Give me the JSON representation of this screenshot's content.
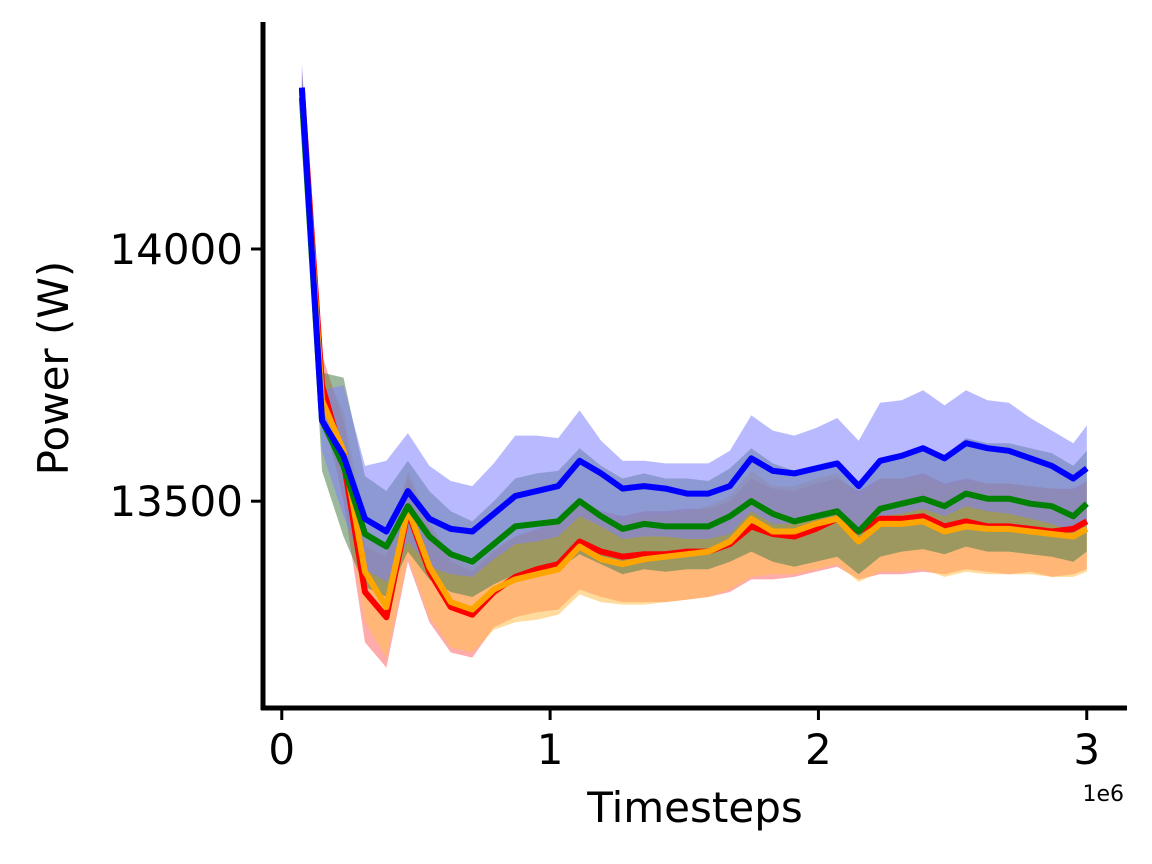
{
  "chart_data": {
    "type": "line",
    "title": "",
    "xlabel": "Timesteps",
    "ylabel": "Power (W)",
    "x_offset_label": "1e6",
    "xlim": [
      -70000,
      3150000
    ],
    "ylim": [
      13090,
      14450
    ],
    "xticks": [
      0,
      1000000,
      2000000,
      3000000
    ],
    "xtick_labels": [
      "0",
      "1",
      "2",
      "3"
    ],
    "yticks": [
      13500,
      14000
    ],
    "ytick_labels": [
      "13500",
      "14000"
    ],
    "grid": false,
    "legend": "none",
    "x": [
      75000,
      150000,
      230000,
      310000,
      390000,
      470000,
      550000,
      630000,
      710000,
      790000,
      870000,
      950000,
      1030000,
      1110000,
      1190000,
      1270000,
      1350000,
      1430000,
      1510000,
      1590000,
      1670000,
      1750000,
      1830000,
      1910000,
      1990000,
      2070000,
      2150000,
      2230000,
      2310000,
      2390000,
      2470000,
      2550000,
      2630000,
      2710000,
      2790000,
      2870000,
      2950000,
      3000000
    ],
    "series": [
      {
        "color": "#ff0000",
        "band_color": "#ff6666",
        "values": [
          14315,
          13730,
          13580,
          13320,
          13270,
          13480,
          13360,
          13290,
          13275,
          13320,
          13350,
          13365,
          13375,
          13420,
          13400,
          13390,
          13395,
          13395,
          13400,
          13400,
          13415,
          13450,
          13435,
          13430,
          13445,
          13465,
          13440,
          13465,
          13465,
          13470,
          13450,
          13460,
          13450,
          13450,
          13445,
          13440,
          13445,
          13460
        ],
        "lower": [
          14270,
          13690,
          13500,
          13220,
          13170,
          13380,
          13260,
          13200,
          13190,
          13250,
          13270,
          13280,
          13285,
          13325,
          13310,
          13300,
          13300,
          13300,
          13305,
          13310,
          13320,
          13345,
          13345,
          13350,
          13360,
          13370,
          13345,
          13355,
          13355,
          13360,
          13355,
          13365,
          13360,
          13355,
          13360,
          13350,
          13355,
          13365
        ],
        "upper": [
          14360,
          13790,
          13660,
          13410,
          13390,
          13550,
          13450,
          13380,
          13360,
          13400,
          13430,
          13445,
          13460,
          13505,
          13480,
          13470,
          13480,
          13480,
          13485,
          13485,
          13500,
          13545,
          13525,
          13520,
          13535,
          13545,
          13520,
          13545,
          13545,
          13555,
          13535,
          13545,
          13535,
          13535,
          13530,
          13525,
          13525,
          13540
        ]
      },
      {
        "color": "#ffa500",
        "band_color": "#ffc04d",
        "values": [
          14300,
          13700,
          13600,
          13360,
          13290,
          13485,
          13370,
          13300,
          13285,
          13325,
          13345,
          13355,
          13365,
          13410,
          13385,
          13375,
          13385,
          13390,
          13395,
          13400,
          13420,
          13465,
          13440,
          13440,
          13455,
          13465,
          13420,
          13455,
          13455,
          13460,
          13440,
          13450,
          13445,
          13445,
          13440,
          13435,
          13430,
          13445
        ],
        "lower": [
          14260,
          13660,
          13520,
          13260,
          13190,
          13390,
          13270,
          13210,
          13200,
          13245,
          13260,
          13265,
          13275,
          13315,
          13300,
          13295,
          13295,
          13300,
          13305,
          13310,
          13325,
          13350,
          13355,
          13355,
          13365,
          13375,
          13340,
          13360,
          13360,
          13365,
          13350,
          13360,
          13355,
          13355,
          13355,
          13350,
          13350,
          13360
        ],
        "upper": [
          14345,
          13760,
          13680,
          13450,
          13400,
          13560,
          13460,
          13390,
          13370,
          13405,
          13430,
          13440,
          13455,
          13500,
          13470,
          13460,
          13470,
          13475,
          13480,
          13490,
          13510,
          13560,
          13530,
          13530,
          13545,
          13555,
          13505,
          13545,
          13545,
          13550,
          13530,
          13540,
          13535,
          13535,
          13530,
          13525,
          13520,
          13535
        ]
      },
      {
        "color": "#008000",
        "band_color": "#4d7f4d",
        "values": [
          14300,
          13660,
          13570,
          13435,
          13410,
          13490,
          13430,
          13395,
          13380,
          13415,
          13450,
          13455,
          13460,
          13500,
          13470,
          13445,
          13455,
          13450,
          13450,
          13450,
          13470,
          13500,
          13475,
          13460,
          13470,
          13480,
          13440,
          13485,
          13495,
          13505,
          13490,
          13515,
          13505,
          13505,
          13495,
          13490,
          13470,
          13495
        ],
        "lower": [
          14255,
          13560,
          13430,
          13330,
          13310,
          13400,
          13345,
          13320,
          13310,
          13335,
          13355,
          13360,
          13365,
          13395,
          13375,
          13355,
          13365,
          13360,
          13365,
          13365,
          13380,
          13400,
          13380,
          13370,
          13380,
          13390,
          13355,
          13390,
          13400,
          13405,
          13395,
          13410,
          13400,
          13400,
          13395,
          13390,
          13380,
          13400
        ],
        "upper": [
          14350,
          13755,
          13745,
          13550,
          13520,
          13580,
          13520,
          13480,
          13460,
          13500,
          13545,
          13555,
          13560,
          13605,
          13570,
          13545,
          13555,
          13545,
          13545,
          13540,
          13565,
          13605,
          13575,
          13560,
          13570,
          13580,
          13530,
          13585,
          13595,
          13610,
          13590,
          13625,
          13615,
          13615,
          13605,
          13595,
          13570,
          13600
        ]
      },
      {
        "color": "#0000ff",
        "band_color": "#7f7fff",
        "values": [
          14320,
          13660,
          13590,
          13465,
          13440,
          13520,
          13465,
          13445,
          13440,
          13475,
          13510,
          13520,
          13530,
          13580,
          13555,
          13525,
          13530,
          13525,
          13515,
          13515,
          13530,
          13585,
          13560,
          13555,
          13565,
          13575,
          13530,
          13580,
          13590,
          13605,
          13585,
          13615,
          13605,
          13600,
          13585,
          13570,
          13545,
          13565
        ],
        "lower": [
          14270,
          13600,
          13470,
          13365,
          13340,
          13420,
          13370,
          13355,
          13350,
          13385,
          13415,
          13420,
          13430,
          13470,
          13450,
          13425,
          13430,
          13430,
          13425,
          13425,
          13435,
          13480,
          13455,
          13455,
          13465,
          13475,
          13435,
          13470,
          13475,
          13485,
          13470,
          13490,
          13480,
          13475,
          13465,
          13455,
          13440,
          13455
        ],
        "upper": [
          14370,
          13720,
          13730,
          13570,
          13580,
          13635,
          13570,
          13540,
          13530,
          13575,
          13630,
          13630,
          13625,
          13680,
          13620,
          13580,
          13580,
          13575,
          13575,
          13575,
          13600,
          13670,
          13640,
          13630,
          13645,
          13665,
          13620,
          13695,
          13700,
          13720,
          13690,
          13720,
          13700,
          13695,
          13665,
          13640,
          13615,
          13650
        ]
      }
    ]
  }
}
